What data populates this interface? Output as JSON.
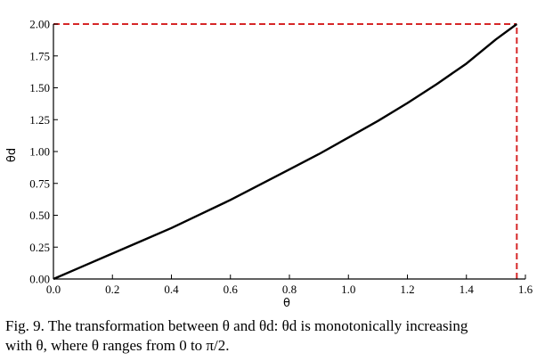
{
  "chart_data": {
    "type": "line",
    "xlabel": "θ",
    "ylabel": "θd",
    "xlim": [
      0,
      1.6
    ],
    "ylim": [
      0,
      2.0
    ],
    "x_ticks": [
      "0.0",
      "0.2",
      "0.4",
      "0.6",
      "0.8",
      "1.0",
      "1.2",
      "1.4",
      "1.6"
    ],
    "x_tick_values": [
      0,
      0.2,
      0.4,
      0.6,
      0.8,
      1.0,
      1.2,
      1.4,
      1.6
    ],
    "y_ticks": [
      "0.00",
      "0.25",
      "0.50",
      "0.75",
      "1.00",
      "1.25",
      "1.50",
      "1.75",
      "2.00"
    ],
    "y_tick_values": [
      0,
      0.25,
      0.5,
      0.75,
      1.0,
      1.25,
      1.5,
      1.75,
      2.0
    ],
    "series": [
      {
        "color": "#000000",
        "style": "solid",
        "x": [
          0,
          0.1,
          0.2,
          0.3,
          0.4,
          0.5,
          0.6,
          0.7,
          0.8,
          0.9,
          1.0,
          1.1,
          1.2,
          1.3,
          1.4,
          1.5,
          1.5708
        ],
        "y": [
          0,
          0.1,
          0.2,
          0.3,
          0.4,
          0.51,
          0.62,
          0.74,
          0.86,
          0.98,
          1.11,
          1.24,
          1.38,
          1.53,
          1.69,
          1.88,
          2.0
        ]
      }
    ],
    "reference_lines": [
      {
        "orientation": "horizontal",
        "value": 2.0,
        "from": 0,
        "to": 1.5708,
        "color": "#d62728",
        "style": "dashed"
      },
      {
        "orientation": "vertical",
        "value": 1.5708,
        "from": 0,
        "to": 2.0,
        "color": "#d62728",
        "style": "dashed"
      }
    ],
    "grid": false,
    "legend": "none"
  },
  "caption": {
    "line1": "Fig. 9.  The transformation between θ and θd: θd is monotonically increasing",
    "line2": "with θ, where θ ranges from 0 to π/2."
  }
}
